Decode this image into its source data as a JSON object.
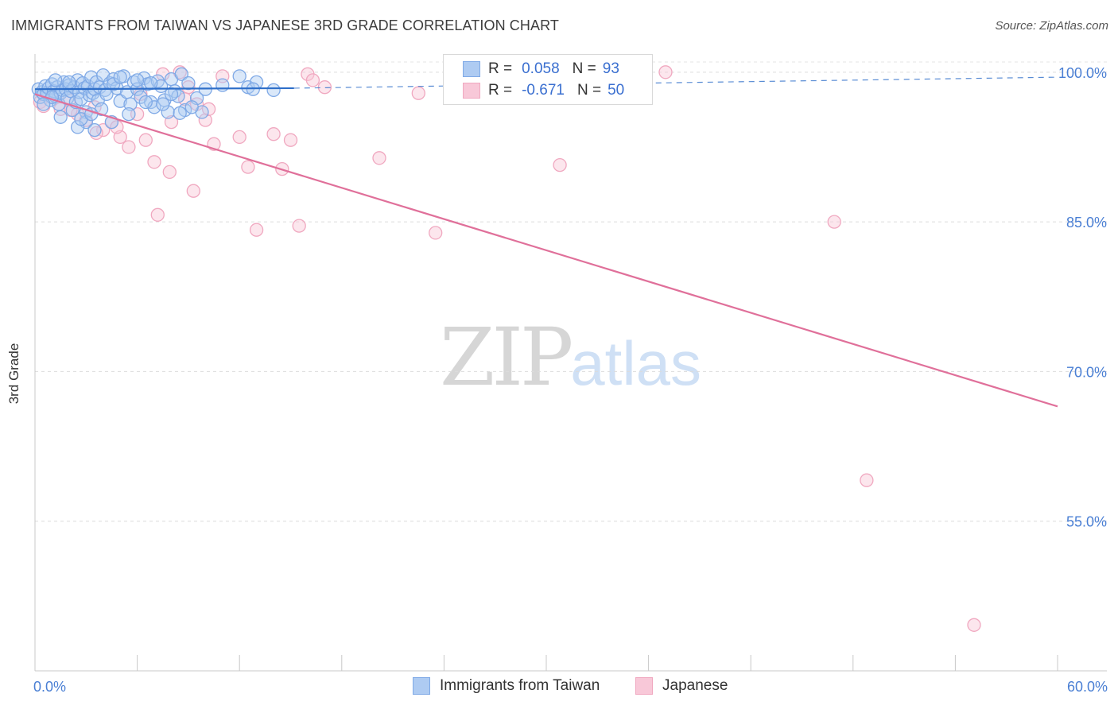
{
  "title": "IMMIGRANTS FROM TAIWAN VS JAPANESE 3RD GRADE CORRELATION CHART",
  "source": "Source: ZipAtlas.com",
  "watermark": {
    "zip": "ZIP",
    "atlas": "atlas"
  },
  "chart_data": {
    "type": "scatter",
    "xlabel": "",
    "ylabel": "3rd Grade",
    "xlim": [
      0,
      60
    ],
    "ylim": [
      40,
      101.5
    ],
    "x_tick_labels": {
      "min": "0.0%",
      "max": "60.0%"
    },
    "y_ticks": [
      {
        "value": 100,
        "label": "100.0%"
      },
      {
        "value": 85,
        "label": "85.0%"
      },
      {
        "value": 70,
        "label": "70.0%"
      },
      {
        "value": 55,
        "label": "55.0%"
      }
    ],
    "grid": "horizontal dashed",
    "legend_stats": [
      {
        "series": "Immigrants from Taiwan",
        "r_label": "R =",
        "r": "0.058",
        "n_label": "N =",
        "n": "93"
      },
      {
        "series": "Japanese",
        "r_label": "R =",
        "r": "-0.671",
        "n_label": "N =",
        "n": "50"
      }
    ],
    "series": [
      {
        "name": "Immigrants from Taiwan",
        "color": "#7fa9e6",
        "fill": "#aecbf2",
        "line_color": "#2f6fc9",
        "trend": {
          "solid": [
            [
              0,
              98.3
            ],
            [
              15.2,
              98.4
            ]
          ],
          "dashed": [
            [
              15.2,
              98.4
            ],
            [
              60,
              99.5
            ]
          ]
        },
        "points": [
          [
            0.2,
            98.3
          ],
          [
            0.3,
            97.5
          ],
          [
            0.4,
            98.0
          ],
          [
            0.5,
            97.8
          ],
          [
            0.6,
            98.6
          ],
          [
            0.7,
            97.9
          ],
          [
            0.8,
            98.4
          ],
          [
            0.9,
            97.2
          ],
          [
            1.0,
            98.8
          ],
          [
            1.1,
            98.1
          ],
          [
            1.2,
            97.6
          ],
          [
            1.3,
            98.5
          ],
          [
            1.4,
            96.8
          ],
          [
            1.5,
            97.9
          ],
          [
            1.6,
            98.2
          ],
          [
            1.7,
            99.0
          ],
          [
            1.8,
            98.3
          ],
          [
            1.9,
            97.4
          ],
          [
            2.0,
            98.7
          ],
          [
            2.1,
            98.1
          ],
          [
            2.2,
            96.2
          ],
          [
            2.3,
            98.5
          ],
          [
            2.4,
            97.0
          ],
          [
            2.5,
            99.2
          ],
          [
            2.6,
            98.0
          ],
          [
            2.7,
            97.3
          ],
          [
            2.8,
            98.9
          ],
          [
            2.9,
            98.4
          ],
          [
            3.0,
            96.0
          ],
          [
            3.1,
            98.6
          ],
          [
            3.2,
            97.7
          ],
          [
            3.3,
            99.5
          ],
          [
            3.4,
            97.9
          ],
          [
            3.5,
            98.3
          ],
          [
            3.6,
            99.0
          ],
          [
            3.7,
            97.2
          ],
          [
            3.8,
            98.5
          ],
          [
            3.9,
            96.3
          ],
          [
            4.0,
            99.7
          ],
          [
            4.1,
            98.2
          ],
          [
            4.2,
            97.8
          ],
          [
            4.4,
            98.9
          ],
          [
            4.6,
            99.3
          ],
          [
            4.8,
            98.4
          ],
          [
            5.0,
            97.1
          ],
          [
            5.2,
            99.6
          ],
          [
            5.4,
            98.0
          ],
          [
            5.6,
            96.8
          ],
          [
            5.8,
            99.0
          ],
          [
            6.0,
            98.3
          ],
          [
            6.2,
            97.5
          ],
          [
            6.4,
            99.4
          ],
          [
            6.6,
            98.8
          ],
          [
            6.8,
            97.0
          ],
          [
            7.0,
            96.5
          ],
          [
            7.2,
            99.1
          ],
          [
            7.4,
            98.6
          ],
          [
            7.6,
            97.2
          ],
          [
            7.8,
            96.0
          ],
          [
            8.0,
            99.3
          ],
          [
            8.2,
            98.1
          ],
          [
            8.4,
            97.6
          ],
          [
            8.6,
            99.8
          ],
          [
            8.8,
            96.2
          ],
          [
            9.0,
            98.9
          ],
          [
            9.5,
            97.4
          ],
          [
            10.0,
            98.3
          ],
          [
            11.0,
            98.7
          ],
          [
            12.0,
            99.6
          ],
          [
            12.5,
            98.5
          ],
          [
            13.0,
            99.0
          ],
          [
            14.0,
            98.2
          ],
          [
            3.0,
            95.0
          ],
          [
            2.5,
            94.5
          ],
          [
            1.5,
            95.5
          ],
          [
            3.5,
            94.2
          ],
          [
            4.5,
            95.0
          ],
          [
            5.5,
            95.8
          ],
          [
            6.5,
            97.0
          ],
          [
            7.5,
            96.8
          ],
          [
            8.5,
            95.9
          ],
          [
            9.8,
            96.0
          ],
          [
            2.7,
            95.3
          ],
          [
            3.3,
            95.8
          ],
          [
            1.0,
            97.5
          ],
          [
            0.5,
            96.8
          ],
          [
            1.2,
            99.2
          ],
          [
            2.0,
            99.0
          ],
          [
            4.6,
            98.8
          ],
          [
            5.0,
            99.5
          ],
          [
            6.8,
            98.9
          ],
          [
            8.0,
            97.8
          ],
          [
            9.2,
            96.5
          ],
          [
            12.8,
            98.3
          ],
          [
            6.0,
            99.2
          ]
        ]
      },
      {
        "name": "Japanese",
        "color": "#f0a8c0",
        "fill": "#f8c8d8",
        "line_color": "#e0709a",
        "trend": {
          "solid": [
            [
              0,
              97.8
            ],
            [
              60,
              66.5
            ]
          ]
        },
        "points": [
          [
            0.3,
            97.0
          ],
          [
            0.5,
            96.6
          ],
          [
            1.0,
            97.5
          ],
          [
            1.5,
            96.3
          ],
          [
            2.0,
            97.2
          ],
          [
            2.5,
            95.8
          ],
          [
            3.0,
            95.2
          ],
          [
            3.5,
            96.5
          ],
          [
            4.0,
            94.2
          ],
          [
            4.5,
            95.0
          ],
          [
            5.0,
            93.5
          ],
          [
            5.5,
            92.5
          ],
          [
            6.0,
            95.8
          ],
          [
            6.5,
            93.2
          ],
          [
            7.0,
            91.0
          ],
          [
            7.5,
            99.8
          ],
          [
            8.0,
            95.0
          ],
          [
            8.5,
            100.0
          ],
          [
            9.0,
            98.5
          ],
          [
            9.5,
            96.8
          ],
          [
            10.0,
            95.2
          ],
          [
            10.5,
            92.8
          ],
          [
            11.0,
            99.6
          ],
          [
            12.0,
            93.5
          ],
          [
            12.5,
            90.5
          ],
          [
            13.0,
            84.2
          ],
          [
            14.0,
            93.8
          ],
          [
            14.5,
            90.3
          ],
          [
            15.0,
            93.2
          ],
          [
            15.5,
            84.6
          ],
          [
            16.0,
            99.8
          ],
          [
            16.3,
            99.2
          ],
          [
            17.0,
            98.5
          ],
          [
            20.2,
            91.4
          ],
          [
            22.5,
            97.9
          ],
          [
            23.5,
            83.9
          ],
          [
            30.8,
            90.7
          ],
          [
            37.0,
            100.0
          ],
          [
            46.9,
            85.0
          ],
          [
            48.8,
            59.1
          ],
          [
            55.1,
            44.6
          ],
          [
            7.2,
            85.7
          ],
          [
            7.9,
            90.0
          ],
          [
            9.3,
            88.1
          ],
          [
            3.6,
            93.9
          ],
          [
            2.1,
            96.2
          ],
          [
            4.8,
            94.5
          ],
          [
            6.2,
            97.8
          ],
          [
            8.8,
            97.3
          ],
          [
            10.2,
            96.3
          ]
        ]
      }
    ]
  }
}
